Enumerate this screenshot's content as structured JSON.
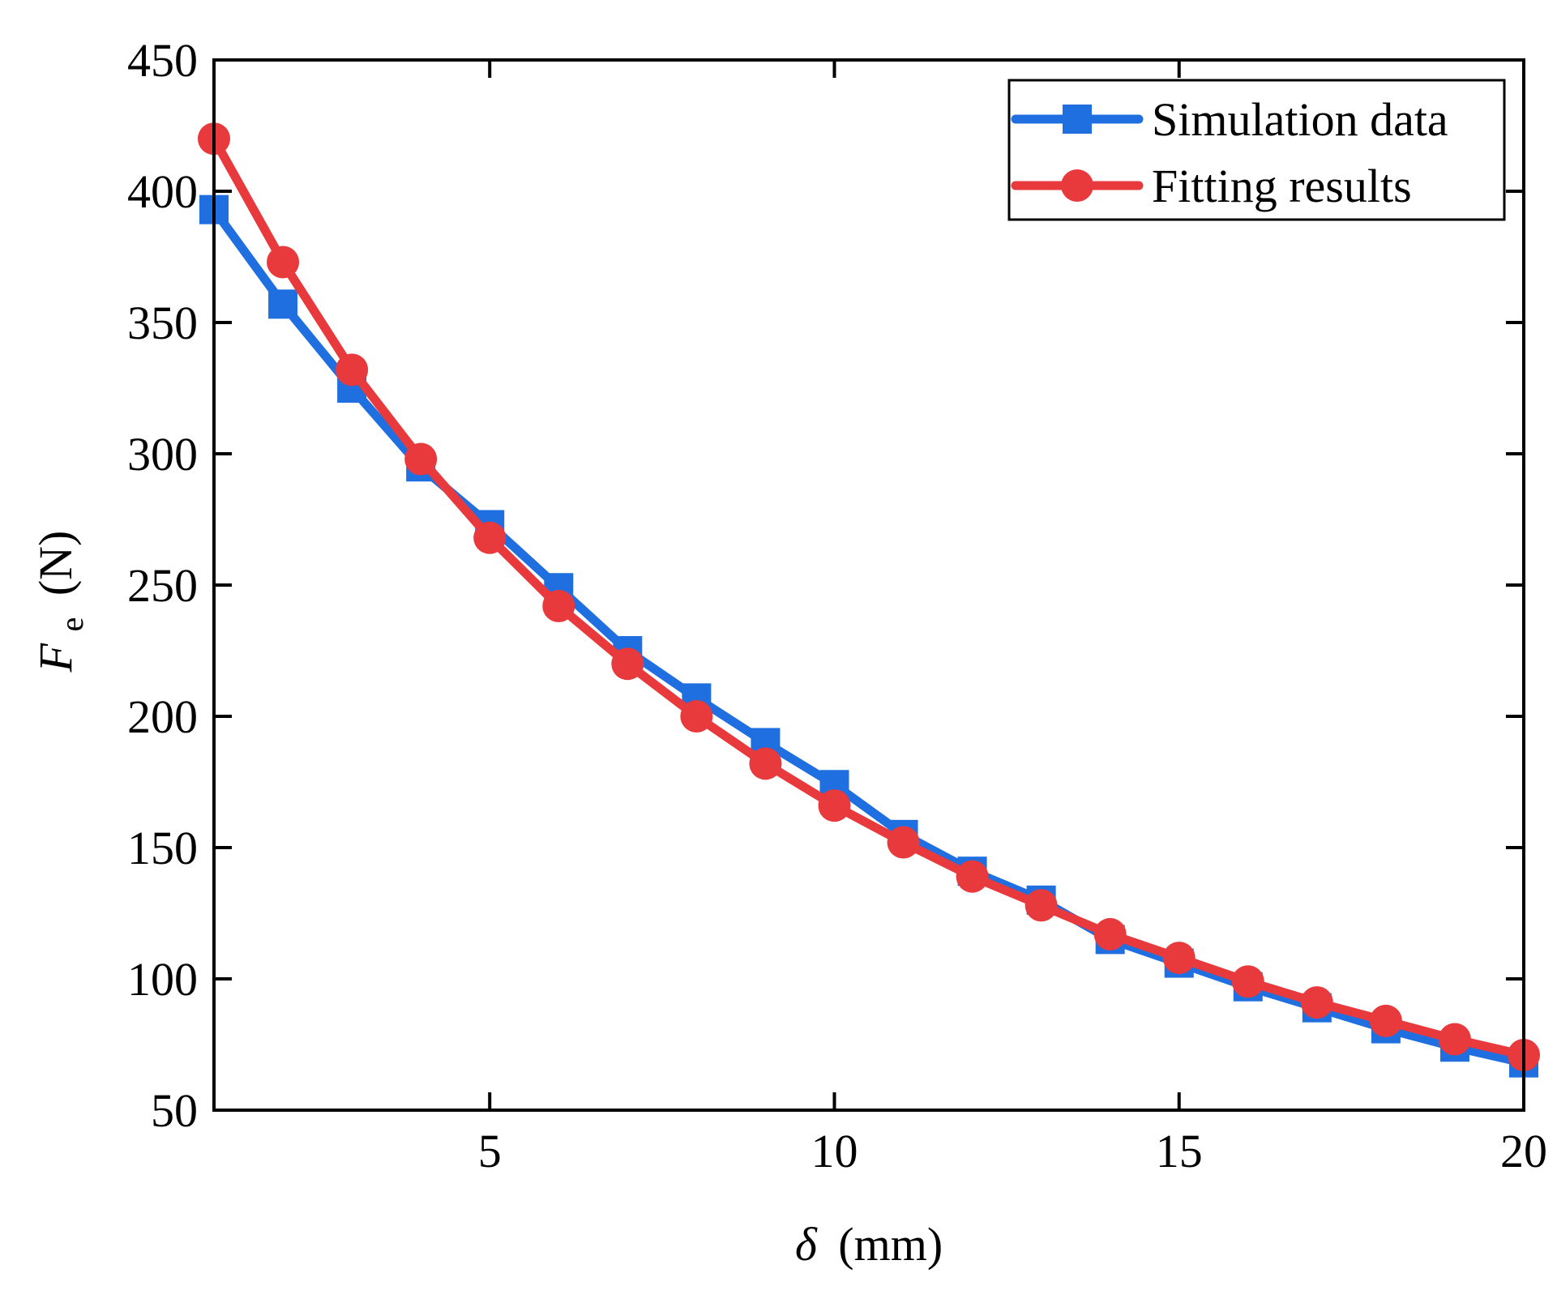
{
  "chart_data": {
    "type": "line",
    "title": "",
    "x": [
      1,
      2,
      3,
      4,
      5,
      6,
      7,
      8,
      9,
      10,
      11,
      12,
      13,
      14,
      15,
      16,
      17,
      18,
      19,
      20
    ],
    "series": [
      {
        "name": "Simulation data",
        "color": "#1f6fe0",
        "marker": "square",
        "values": [
          393,
          357,
          325,
          295,
          273,
          249,
          225,
          207,
          190,
          174,
          155,
          141,
          130,
          115,
          106,
          97,
          89,
          81,
          74,
          68
        ]
      },
      {
        "name": "Fitting results",
        "color": "#e8393d",
        "marker": "circle",
        "values": [
          420,
          373,
          332,
          298,
          268,
          242,
          220,
          200,
          182,
          166,
          152,
          139,
          128,
          117,
          108,
          99,
          91,
          84,
          77,
          71
        ]
      }
    ],
    "xlabel": {
      "symbol": "δ",
      "unit": "(mm)"
    },
    "ylabel": {
      "symbol": "F",
      "subscript": "e",
      "unit": "(N)"
    },
    "xlim": [
      1,
      20
    ],
    "ylim": [
      50,
      450
    ],
    "xticks": [
      5,
      10,
      15,
      20
    ],
    "yticks": [
      50,
      100,
      150,
      200,
      250,
      300,
      350,
      400,
      450
    ],
    "legend_position": "top-right",
    "grid": false
  }
}
